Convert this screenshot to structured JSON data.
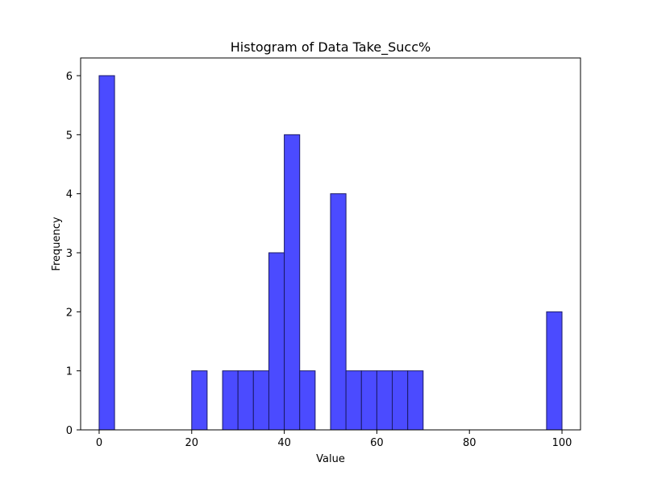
{
  "chart_data": {
    "type": "bar",
    "title": "Histogram of Data Take_Succ%",
    "xlabel": "Value",
    "ylabel": "Frequency",
    "bins": [
      {
        "x0": 0.0,
        "x1": 3.33,
        "value": 6
      },
      {
        "x0": 3.33,
        "x1": 6.67,
        "value": 0
      },
      {
        "x0": 6.67,
        "x1": 10.0,
        "value": 0
      },
      {
        "x0": 10.0,
        "x1": 13.33,
        "value": 0
      },
      {
        "x0": 13.33,
        "x1": 16.67,
        "value": 0
      },
      {
        "x0": 16.67,
        "x1": 20.0,
        "value": 0
      },
      {
        "x0": 20.0,
        "x1": 23.33,
        "value": 1
      },
      {
        "x0": 23.33,
        "x1": 26.67,
        "value": 0
      },
      {
        "x0": 26.67,
        "x1": 30.0,
        "value": 1
      },
      {
        "x0": 30.0,
        "x1": 33.33,
        "value": 1
      },
      {
        "x0": 33.33,
        "x1": 36.67,
        "value": 1
      },
      {
        "x0": 36.67,
        "x1": 40.0,
        "value": 3
      },
      {
        "x0": 40.0,
        "x1": 43.33,
        "value": 5
      },
      {
        "x0": 43.33,
        "x1": 46.67,
        "value": 1
      },
      {
        "x0": 46.67,
        "x1": 50.0,
        "value": 0
      },
      {
        "x0": 50.0,
        "x1": 53.33,
        "value": 4
      },
      {
        "x0": 53.33,
        "x1": 56.67,
        "value": 1
      },
      {
        "x0": 56.67,
        "x1": 60.0,
        "value": 1
      },
      {
        "x0": 60.0,
        "x1": 63.33,
        "value": 1
      },
      {
        "x0": 63.33,
        "x1": 66.67,
        "value": 1
      },
      {
        "x0": 66.67,
        "x1": 70.0,
        "value": 1
      },
      {
        "x0": 70.0,
        "x1": 73.33,
        "value": 0
      },
      {
        "x0": 73.33,
        "x1": 76.67,
        "value": 0
      },
      {
        "x0": 76.67,
        "x1": 80.0,
        "value": 0
      },
      {
        "x0": 80.0,
        "x1": 83.33,
        "value": 0
      },
      {
        "x0": 83.33,
        "x1": 86.67,
        "value": 0
      },
      {
        "x0": 86.67,
        "x1": 90.0,
        "value": 0
      },
      {
        "x0": 90.0,
        "x1": 93.33,
        "value": 0
      },
      {
        "x0": 93.33,
        "x1": 96.67,
        "value": 0
      },
      {
        "x0": 96.67,
        "x1": 100.0,
        "value": 2
      }
    ],
    "xlim": [
      -4.0,
      104.0
    ],
    "ylim": [
      0,
      6.3
    ],
    "xticks": [
      0,
      20,
      40,
      60,
      80,
      100
    ],
    "yticks": [
      0,
      1,
      2,
      3,
      4,
      5,
      6
    ],
    "grid": false,
    "bar_color": "#4b4bff",
    "edge_color": "#1a1a66"
  }
}
